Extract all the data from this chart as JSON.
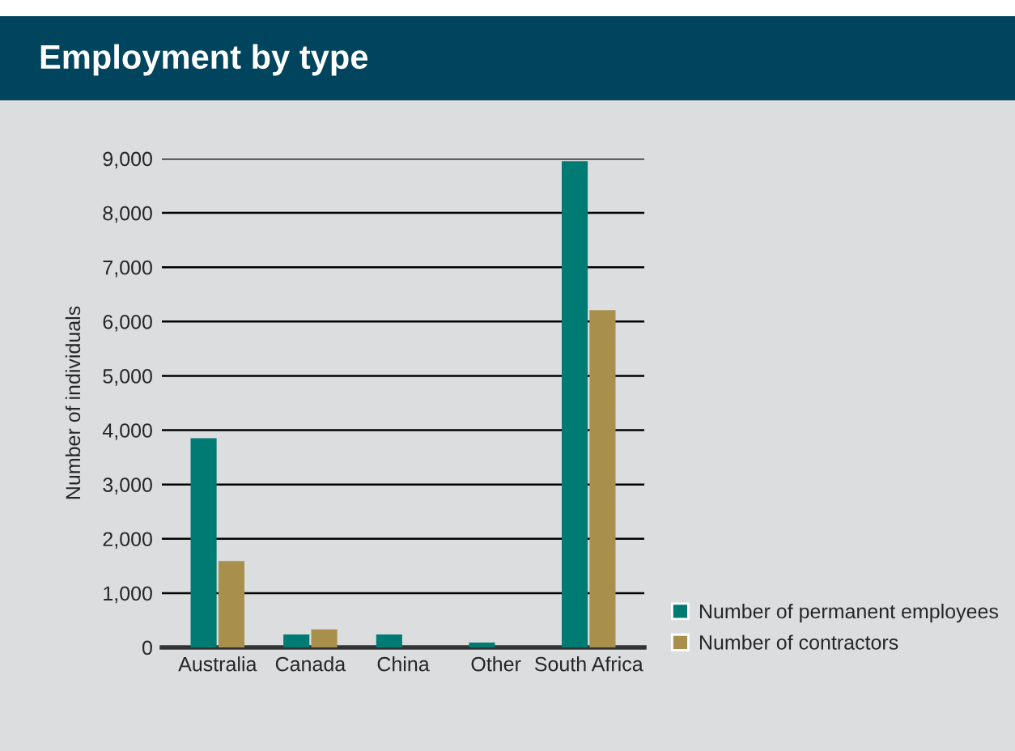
{
  "chart_data": {
    "type": "bar",
    "title": "Employment by type",
    "ylabel": "Number of individuals",
    "categories": [
      "Australia",
      "Canada",
      "China",
      "Other",
      "South Africa"
    ],
    "series": [
      {
        "name": "Number of permanent employees",
        "color": "#007b74",
        "values": [
          3850,
          240,
          240,
          90,
          8950
        ]
      },
      {
        "name": "Number of contractors",
        "color": "#a88f4c",
        "values": [
          1590,
          330,
          null,
          null,
          6210
        ]
      }
    ],
    "ylim": [
      0,
      9000
    ],
    "yticks": [
      {
        "value": 0,
        "label": "0"
      },
      {
        "value": 1000,
        "label": "1,000"
      },
      {
        "value": 2000,
        "label": "2,000"
      },
      {
        "value": 3000,
        "label": "3,000"
      },
      {
        "value": 4000,
        "label": "4,000"
      },
      {
        "value": 5000,
        "label": "5,000"
      },
      {
        "value": 6000,
        "label": "6,000"
      },
      {
        "value": 7000,
        "label": "7,000"
      },
      {
        "value": 8000,
        "label": "8,000"
      },
      {
        "value": 9000,
        "label": "9,000"
      }
    ],
    "grid": "y",
    "legend": "bottom right"
  }
}
